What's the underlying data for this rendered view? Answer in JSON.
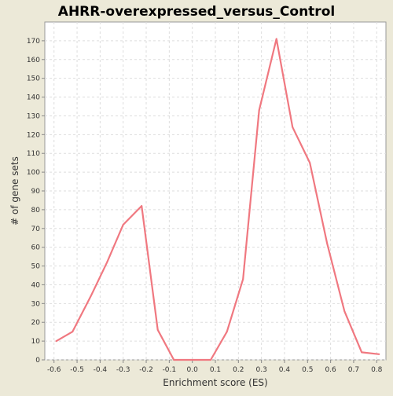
{
  "chart_data": {
    "type": "line",
    "title": "AHRR-overexpressed_versus_Control",
    "xlabel": "Enrichment score (ES)",
    "ylabel": "# of gene sets",
    "xlim": [
      -0.64,
      0.84
    ],
    "ylim": [
      0,
      180
    ],
    "x_ticks": [
      -0.6,
      -0.5,
      -0.4,
      -0.3,
      -0.2,
      -0.1,
      0.0,
      0.1,
      0.2,
      0.3,
      0.4,
      0.5,
      0.6,
      0.7,
      0.8
    ],
    "y_ticks": [
      0,
      10,
      20,
      30,
      40,
      50,
      60,
      70,
      80,
      90,
      100,
      110,
      120,
      130,
      140,
      150,
      160,
      170
    ],
    "grid": true,
    "legend": "none",
    "series": [
      {
        "color": "#f07880",
        "x": [
          -0.59,
          -0.52,
          -0.44,
          -0.37,
          -0.3,
          -0.22,
          -0.15,
          -0.08,
          0.0,
          0.08,
          0.15,
          0.22,
          0.29,
          0.365,
          0.435,
          0.51,
          0.585,
          0.66,
          0.735,
          0.81
        ],
        "y": [
          10,
          15,
          34,
          52,
          72,
          82,
          16,
          0,
          0,
          0,
          15,
          43,
          133,
          171,
          124,
          105,
          62,
          26,
          4,
          3
        ]
      }
    ]
  }
}
